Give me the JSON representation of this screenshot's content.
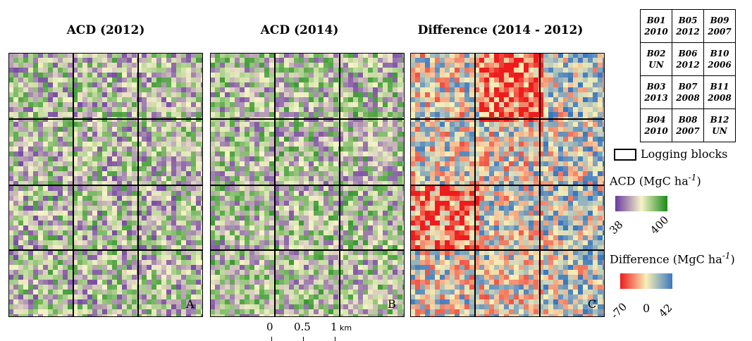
{
  "titles": {
    "a": "ACD (2012)",
    "b": "ACD (2014)",
    "c": "Difference (2014 - 2012)"
  },
  "panel_letters": [
    "A",
    "B",
    "C"
  ],
  "blocks": [
    [
      {
        "id": "B01",
        "year": "2010"
      },
      {
        "id": "B05",
        "year": "2012"
      },
      {
        "id": "B09",
        "year": "2007"
      }
    ],
    [
      {
        "id": "B02",
        "year": "UN"
      },
      {
        "id": "B06",
        "year": "2012"
      },
      {
        "id": "B10",
        "year": "2006"
      }
    ],
    [
      {
        "id": "B03",
        "year": "2013"
      },
      {
        "id": "B07",
        "year": "2008"
      },
      {
        "id": "B11",
        "year": "2008"
      }
    ],
    [
      {
        "id": "B04",
        "year": "2010"
      },
      {
        "id": "B08",
        "year": "2007"
      },
      {
        "id": "B12",
        "year": "UN"
      }
    ]
  ],
  "legend": {
    "logging_blocks": "Logging blocks",
    "acd_label": "ACD (MgC ha",
    "acd_sup": "-1",
    "acd_close": ")",
    "acd_min": "38",
    "acd_max": "400",
    "acd_colors": [
      "#6b3aa0",
      "#f7f4c8",
      "#1a8a1a"
    ],
    "diff_label": "Difference (MgC ha",
    "diff_sup": "-1",
    "diff_close": ")",
    "diff_min": "-70",
    "diff_mid": "0",
    "diff_max": "42",
    "diff_colors": [
      "#ee1c1c",
      "#f8f0b8",
      "#3a78c0"
    ]
  },
  "scale_bar": {
    "labels": [
      "0",
      "0.5",
      "1"
    ],
    "unit": "km"
  }
}
